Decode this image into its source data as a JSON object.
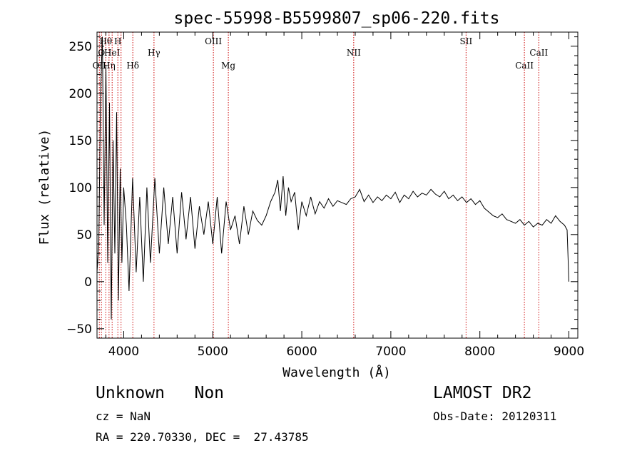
{
  "chart_data": {
    "type": "line",
    "title": "spec-55998-B5599807_sp06-220.fits",
    "xlabel": "Wavelength (Å)",
    "ylabel": "Flux (relative)",
    "xlim": [
      3700,
      9100
    ],
    "ylim": [
      -60,
      265
    ],
    "x_ticks": [
      4000,
      5000,
      6000,
      7000,
      8000,
      9000
    ],
    "y_ticks": [
      -50,
      0,
      50,
      100,
      150,
      200,
      250
    ],
    "grid": false,
    "series": [
      {
        "line_color": "#000000",
        "x": [
          3700,
          3720,
          3740,
          3760,
          3780,
          3800,
          3820,
          3840,
          3860,
          3880,
          3900,
          3920,
          3940,
          3960,
          3980,
          4000,
          4030,
          4060,
          4100,
          4140,
          4180,
          4220,
          4260,
          4300,
          4350,
          4400,
          4450,
          4500,
          4550,
          4600,
          4650,
          4700,
          4750,
          4800,
          4850,
          4900,
          4950,
          5000,
          5050,
          5100,
          5150,
          5200,
          5250,
          5300,
          5350,
          5400,
          5450,
          5500,
          5550,
          5600,
          5650,
          5700,
          5730,
          5760,
          5790,
          5820,
          5850,
          5880,
          5920,
          5960,
          6000,
          6050,
          6100,
          6150,
          6200,
          6250,
          6300,
          6350,
          6400,
          6450,
          6500,
          6550,
          6600,
          6650,
          6700,
          6750,
          6800,
          6850,
          6900,
          6950,
          7000,
          7050,
          7100,
          7150,
          7200,
          7250,
          7300,
          7350,
          7400,
          7450,
          7500,
          7550,
          7600,
          7650,
          7700,
          7750,
          7800,
          7850,
          7900,
          7950,
          8000,
          8050,
          8100,
          8150,
          8200,
          8250,
          8300,
          8350,
          8400,
          8450,
          8500,
          8550,
          8600,
          8650,
          8700,
          8750,
          8800,
          8850,
          8900,
          8950,
          8980,
          9000
        ],
        "values": [
          10,
          40,
          200,
          260,
          60,
          230,
          20,
          190,
          -40,
          150,
          30,
          180,
          -20,
          120,
          20,
          100,
          60,
          -10,
          110,
          10,
          90,
          0,
          100,
          20,
          110,
          30,
          100,
          40,
          90,
          30,
          95,
          45,
          90,
          35,
          80,
          50,
          85,
          40,
          90,
          30,
          85,
          55,
          70,
          40,
          80,
          50,
          75,
          65,
          60,
          70,
          85,
          95,
          108,
          75,
          112,
          70,
          100,
          85,
          95,
          55,
          85,
          70,
          90,
          72,
          85,
          78,
          88,
          80,
          86,
          84,
          82,
          88,
          90,
          98,
          85,
          92,
          84,
          90,
          86,
          92,
          88,
          95,
          84,
          92,
          88,
          96,
          90,
          94,
          92,
          98,
          93,
          90,
          96,
          88,
          92,
          86,
          90,
          84,
          88,
          82,
          86,
          78,
          74,
          70,
          68,
          72,
          66,
          64,
          62,
          66,
          60,
          64,
          58,
          62,
          60,
          66,
          62,
          70,
          64,
          60,
          55,
          0
        ]
      }
    ],
    "line_markers": [
      {
        "wavelength": 3726,
        "label": "OII",
        "row": 3
      },
      {
        "wavelength": 3750,
        "label": "O",
        "row": 2
      },
      {
        "wavelength": 3798,
        "label": "Hθ",
        "row": 1
      },
      {
        "wavelength": 3835,
        "label": "Hη",
        "row": 3
      },
      {
        "wavelength": 3870,
        "label": "HeI",
        "row": 2
      },
      {
        "wavelength": 3934,
        "label": "H",
        "row": 1
      },
      {
        "wavelength": 3970,
        "label": "",
        "row": 0
      },
      {
        "wavelength": 4102,
        "label": "Hδ",
        "row": 3
      },
      {
        "wavelength": 4340,
        "label": "Hγ",
        "row": 2
      },
      {
        "wavelength": 5007,
        "label": "OIII",
        "row": 1
      },
      {
        "wavelength": 5175,
        "label": "Mg",
        "row": 3
      },
      {
        "wavelength": 6583,
        "label": "NII",
        "row": 2
      },
      {
        "wavelength": 7845,
        "label": "SII",
        "row": 1
      },
      {
        "wavelength": 8500,
        "label": "CaII",
        "row": 3
      },
      {
        "wavelength": 8662,
        "label": "CaII",
        "row": 2
      }
    ],
    "marker_color": "#cc0000"
  },
  "info": {
    "class_text": "Unknown   Non",
    "survey": "LAMOST DR2",
    "cz": "cz = NaN",
    "obs_date": "Obs-Date: 20120311",
    "coords": "RA = 220.70330, DEC =  27.43785"
  }
}
